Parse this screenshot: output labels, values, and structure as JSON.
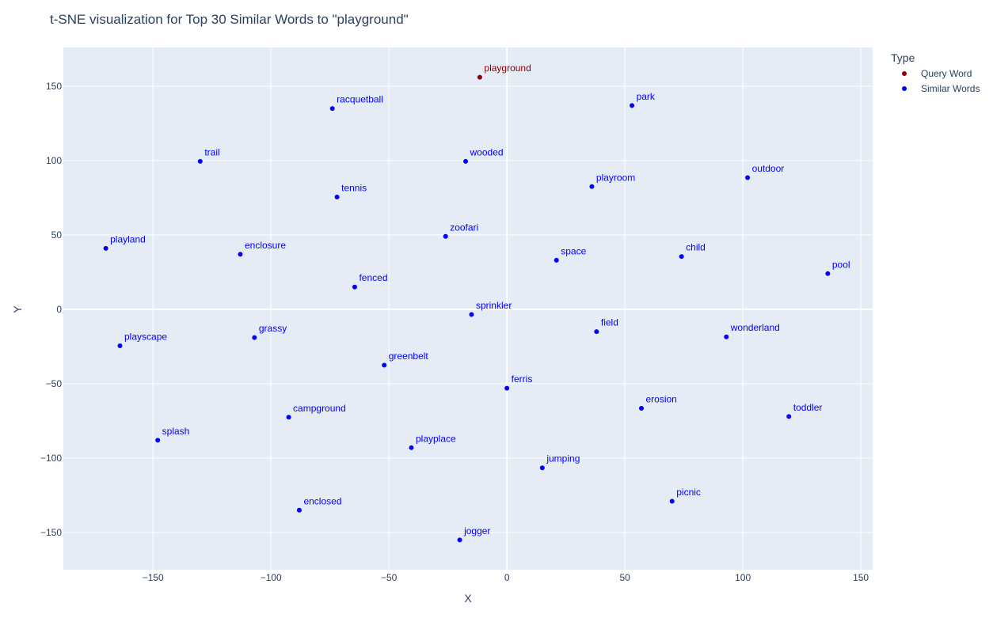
{
  "chart_data": {
    "type": "scatter",
    "title": "t-SNE visualization for Top 30 Similar Words to \"playground\"",
    "xlabel": "X",
    "ylabel": "Y",
    "xlim": [
      -188,
      155
    ],
    "ylim": [
      -175,
      176
    ],
    "x_ticks": [
      -150,
      -100,
      -50,
      0,
      50,
      100,
      150
    ],
    "x_tick_labels": [
      "−150",
      "−100",
      "−50",
      "0",
      "50",
      "100",
      "150"
    ],
    "y_ticks": [
      150,
      100,
      50,
      0,
      -50,
      -100,
      -150
    ],
    "y_tick_labels": [
      "150",
      "100",
      "50",
      "0",
      "−50",
      "−100",
      "−150"
    ],
    "grid": true,
    "legend": {
      "title": "Type",
      "position": "right",
      "entries": [
        {
          "name": "Query Word",
          "color": "#8b0000"
        },
        {
          "name": "Similar Words",
          "color": "#0000ff"
        }
      ]
    },
    "series": [
      {
        "name": "Query Word",
        "color": "#8b0000",
        "points": [
          {
            "label": "playground",
            "x": -11.5,
            "y": 156
          }
        ]
      },
      {
        "name": "Similar Words",
        "color": "#0000ff",
        "points": [
          {
            "label": "racquetball",
            "x": -74,
            "y": 135
          },
          {
            "label": "park",
            "x": 53,
            "y": 137
          },
          {
            "label": "trail",
            "x": -130,
            "y": 99.5
          },
          {
            "label": "wooded",
            "x": -17.5,
            "y": 99.5
          },
          {
            "label": "outdoor",
            "x": 102,
            "y": 88.5
          },
          {
            "label": "playroom",
            "x": 36,
            "y": 82.5
          },
          {
            "label": "tennis",
            "x": -72,
            "y": 75.5
          },
          {
            "label": "zoofari",
            "x": -26,
            "y": 49
          },
          {
            "label": "playland",
            "x": -170,
            "y": 41
          },
          {
            "label": "enclosure",
            "x": -113,
            "y": 37
          },
          {
            "label": "space",
            "x": 21,
            "y": 33
          },
          {
            "label": "child",
            "x": 74,
            "y": 35.5
          },
          {
            "label": "pool",
            "x": 136,
            "y": 24
          },
          {
            "label": "fenced",
            "x": -64.5,
            "y": 15
          },
          {
            "label": "sprinkler",
            "x": -15,
            "y": -3.5
          },
          {
            "label": "field",
            "x": 38,
            "y": -15
          },
          {
            "label": "wonderland",
            "x": 93,
            "y": -18.5
          },
          {
            "label": "grassy",
            "x": -107,
            "y": -19
          },
          {
            "label": "playscape",
            "x": -164,
            "y": -24.5
          },
          {
            "label": "greenbelt",
            "x": -52,
            "y": -37.5
          },
          {
            "label": "ferris",
            "x": 0,
            "y": -53
          },
          {
            "label": "erosion",
            "x": 57,
            "y": -66.5
          },
          {
            "label": "toddler",
            "x": 119.5,
            "y": -72
          },
          {
            "label": "campground",
            "x": -92.5,
            "y": -72.5
          },
          {
            "label": "splash",
            "x": -148,
            "y": -88
          },
          {
            "label": "playplace",
            "x": -40.5,
            "y": -93
          },
          {
            "label": "jumping",
            "x": 15,
            "y": -106.5
          },
          {
            "label": "picnic",
            "x": 70,
            "y": -129
          },
          {
            "label": "enclosed",
            "x": -88,
            "y": -135
          },
          {
            "label": "jogger",
            "x": -20,
            "y": -155
          }
        ]
      }
    ]
  }
}
